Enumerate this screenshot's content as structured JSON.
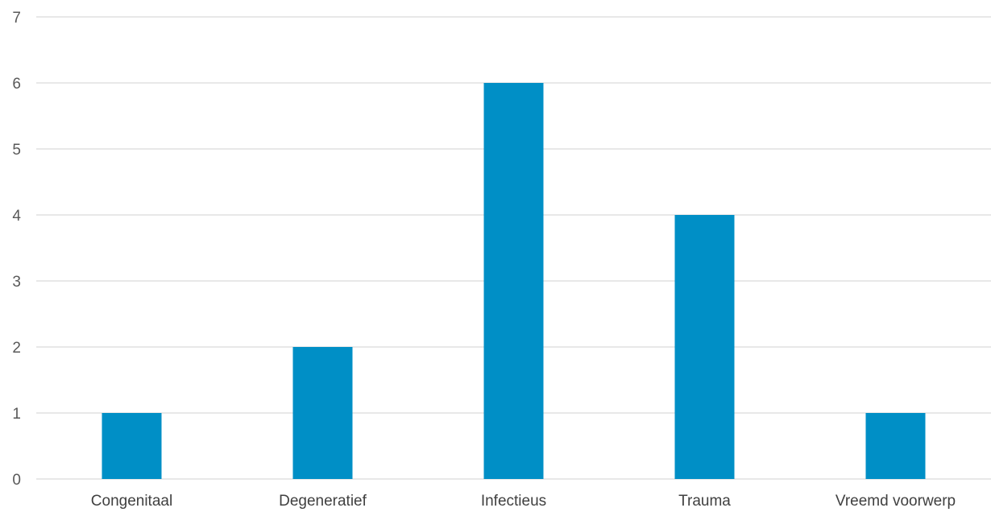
{
  "chart_data": {
    "type": "bar",
    "categories": [
      "Congenitaal",
      "Degeneratief",
      "Infectieus",
      "Trauma",
      "Vreemd voorwerp"
    ],
    "values": [
      1,
      2,
      6,
      4,
      1
    ],
    "ylim": [
      0,
      7
    ],
    "yticks": [
      "0",
      "1",
      "2",
      "3",
      "4",
      "5",
      "6",
      "7"
    ],
    "grid": true,
    "legend": "none",
    "bar_color": "#008fc6",
    "gridline_color": "#d9d9d9"
  }
}
